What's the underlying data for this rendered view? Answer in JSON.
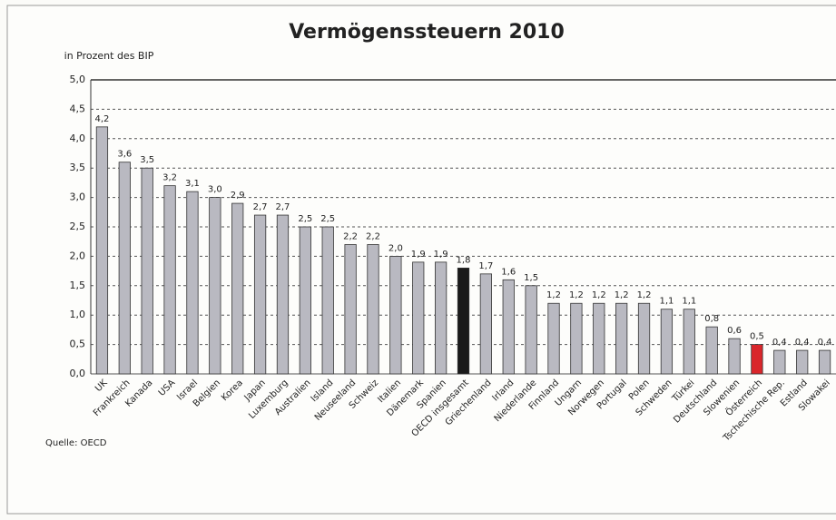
{
  "chart_data": {
    "type": "bar",
    "title": "Vermögenssteuern 2010",
    "subtitle": "in Prozent des BIP",
    "source": "Quelle: OECD",
    "categories": [
      "UK",
      "Frankreich",
      "Kanada",
      "USA",
      "Israel",
      "Belgien",
      "Korea",
      "Japan",
      "Luxemburg",
      "Australien",
      "Island",
      "Neuseeland",
      "Schweiz",
      "Italien",
      "Dänemark",
      "Spanien",
      "OECD insgesamt",
      "Griechenland",
      "Irland",
      "Niederlande",
      "Finnland",
      "Ungarn",
      "Norwegen",
      "Portugal",
      "Polen",
      "Schweden",
      "Türkei",
      "Deutschland",
      "Slowenien",
      "Österreich",
      "Tschechische Rep.",
      "Estland",
      "Slowakei"
    ],
    "values": [
      4.2,
      3.6,
      3.5,
      3.2,
      3.1,
      3.0,
      2.9,
      2.7,
      2.7,
      2.5,
      2.5,
      2.2,
      2.2,
      2.0,
      1.9,
      1.9,
      1.8,
      1.7,
      1.6,
      1.5,
      1.2,
      1.2,
      1.2,
      1.2,
      1.2,
      1.1,
      1.1,
      0.8,
      0.6,
      0.5,
      0.4,
      0.4,
      0.4
    ],
    "value_labels": [
      "4,2",
      "3,6",
      "3,5",
      "3,2",
      "3,1",
      "3,0",
      "2,9",
      "2,7",
      "2,7",
      "2,5",
      "2,5",
      "2,2",
      "2,2",
      "2,0",
      "1,9",
      "1,9",
      "1,8",
      "1,7",
      "1,6",
      "1,5",
      "1,2",
      "1,2",
      "1,2",
      "1,2",
      "1,2",
      "1,1",
      "1,1",
      "0,8",
      "0,6",
      "0,5",
      "0,4",
      "0,4",
      "0,4"
    ],
    "colors": [
      "#b9b9c1",
      "#b9b9c1",
      "#b9b9c1",
      "#b9b9c1",
      "#b9b9c1",
      "#b9b9c1",
      "#b9b9c1",
      "#b9b9c1",
      "#b9b9c1",
      "#b9b9c1",
      "#b9b9c1",
      "#b9b9c1",
      "#b9b9c1",
      "#b9b9c1",
      "#b9b9c1",
      "#b9b9c1",
      "#1a1a1a",
      "#b9b9c1",
      "#b9b9c1",
      "#b9b9c1",
      "#b9b9c1",
      "#b9b9c1",
      "#b9b9c1",
      "#b9b9c1",
      "#b9b9c1",
      "#b9b9c1",
      "#b9b9c1",
      "#b9b9c1",
      "#b9b9c1",
      "#d9262b",
      "#b9b9c1",
      "#b9b9c1",
      "#b9b9c1"
    ],
    "ylim": [
      0,
      5
    ],
    "yticks": [
      {
        "value": 0,
        "label": "0,0"
      },
      {
        "value": 0.5,
        "label": "0,5"
      },
      {
        "value": 1,
        "label": "1,0"
      },
      {
        "value": 1.5,
        "label": "1,5"
      },
      {
        "value": 2,
        "label": "2,0"
      },
      {
        "value": 2.5,
        "label": "2,5"
      },
      {
        "value": 3,
        "label": "3,0"
      },
      {
        "value": 3.5,
        "label": "3,5"
      },
      {
        "value": 4,
        "label": "4,0"
      },
      {
        "value": 4.5,
        "label": "4,5"
      },
      {
        "value": 5,
        "label": "5,0"
      }
    ],
    "grid": true
  }
}
